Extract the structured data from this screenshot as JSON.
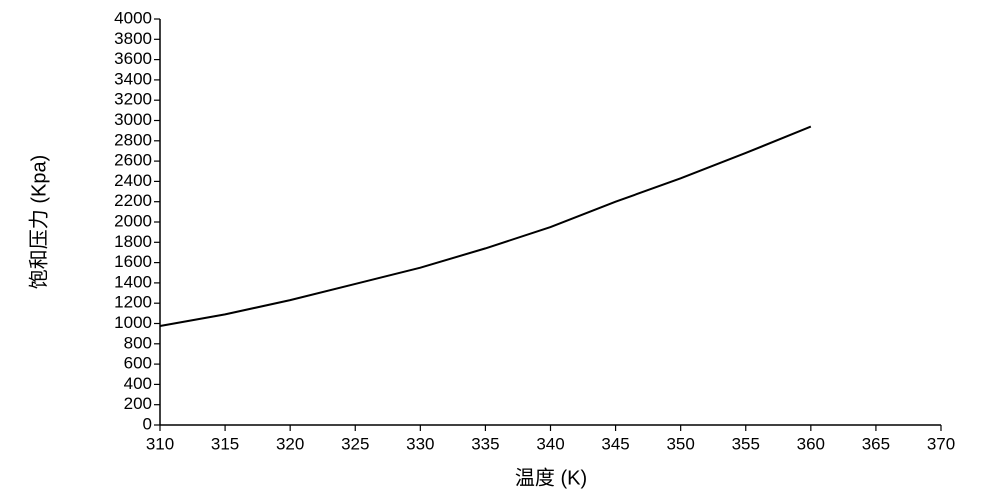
{
  "chart_data": {
    "type": "line",
    "x_label": "温度 (K)",
    "y_label": "饱和压力 (Kpa)",
    "x": [
      310,
      315,
      320,
      325,
      330,
      335,
      340,
      345,
      350,
      355,
      360
    ],
    "series": [
      {
        "color": "#000000",
        "values": [
          975,
          1090,
          1230,
          1390,
          1550,
          1740,
          1950,
          2200,
          2430,
          2680,
          2940
        ]
      }
    ],
    "xlim": [
      310,
      370
    ],
    "xticks": [
      310,
      315,
      320,
      325,
      330,
      335,
      340,
      345,
      350,
      355,
      360,
      365,
      370
    ],
    "ylim": [
      0,
      4000
    ],
    "yticks": [
      0,
      200,
      400,
      600,
      800,
      1000,
      1200,
      1400,
      1600,
      1800,
      2000,
      2200,
      2400,
      2600,
      2800,
      3000,
      3200,
      3400,
      3600,
      3800,
      4000
    ],
    "grid": false
  }
}
